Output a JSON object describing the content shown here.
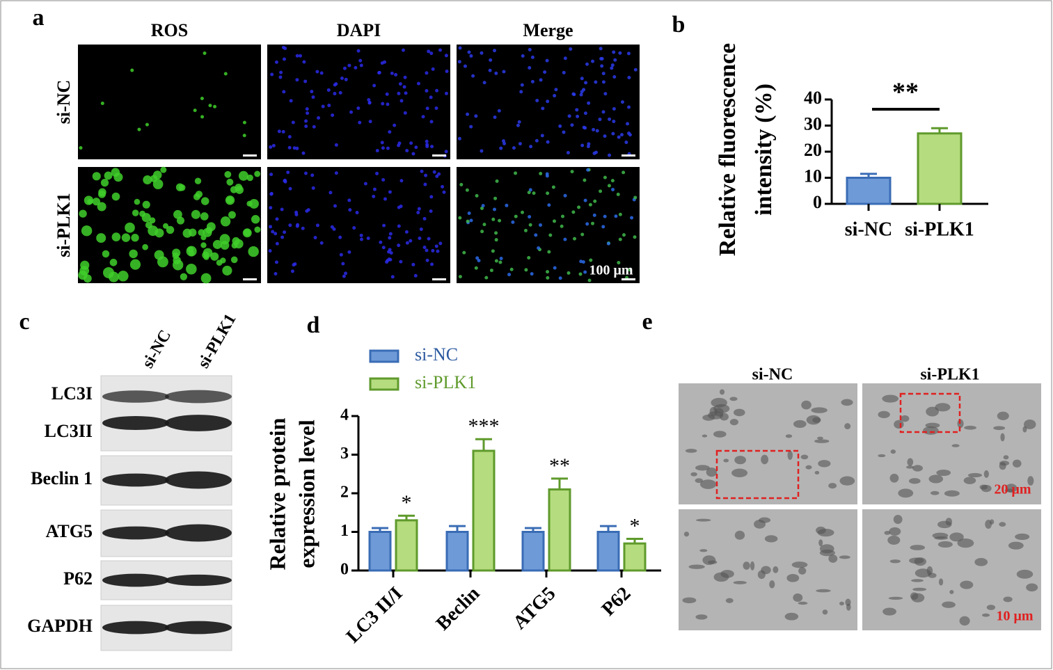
{
  "panel_a": {
    "label": "a",
    "columns": [
      "ROS",
      "DAPI",
      "Merge"
    ],
    "rows": [
      "si-NC",
      "si-PLK1"
    ],
    "scale": "100 μm"
  },
  "panel_c": {
    "label": "c",
    "lanes": [
      "si-NC",
      "si-PLK1"
    ],
    "bands": [
      "LC3I",
      "LC3II",
      "Beclin 1",
      "ATG5",
      "P62",
      "GAPDH"
    ]
  },
  "panel_e": {
    "label": "e",
    "columns": [
      "si-NC",
      "si-PLK1"
    ],
    "scales": [
      "20 μm",
      "10 μm"
    ]
  },
  "chart_data": [
    {
      "type": "bar",
      "panel_label": "b",
      "y_label": [
        "Relative fluorescence",
        "intensity (%)"
      ],
      "categories": [
        "si-NC",
        "si-PLK1"
      ],
      "values": [
        10,
        27
      ],
      "errors": [
        1.5,
        2
      ],
      "colors": [
        "#6e9ad8",
        "#b5dc7e"
      ],
      "edge_colors": [
        "#3a6cb5",
        "#5f9a2c"
      ],
      "ylim": [
        0,
        40
      ],
      "yticks": [
        0,
        10,
        20,
        30,
        40
      ],
      "annotation": "**"
    },
    {
      "type": "grouped-bar",
      "panel_label": "d",
      "y_label": [
        "Relative protein",
        "expression level"
      ],
      "categories": [
        "LC3 II/I",
        "Beclin",
        "ATG5",
        "P62"
      ],
      "series": [
        {
          "name": "si-NC",
          "color": "#6e9ad8",
          "edge_color": "#3a6cb5",
          "values": [
            1,
            1,
            1,
            1
          ],
          "errors": [
            0.1,
            0.15,
            0.1,
            0.15
          ]
        },
        {
          "name": "si-PLK1",
          "color": "#b5dc7e",
          "edge_color": "#5f9a2c",
          "values": [
            1.3,
            3.1,
            2.1,
            0.7
          ],
          "errors": [
            0.12,
            0.3,
            0.28,
            0.12
          ],
          "annotations": [
            "*",
            "***",
            "**",
            "*"
          ]
        }
      ],
      "ylim": [
        0,
        4
      ],
      "yticks": [
        0,
        1,
        2,
        3,
        4
      ]
    }
  ]
}
